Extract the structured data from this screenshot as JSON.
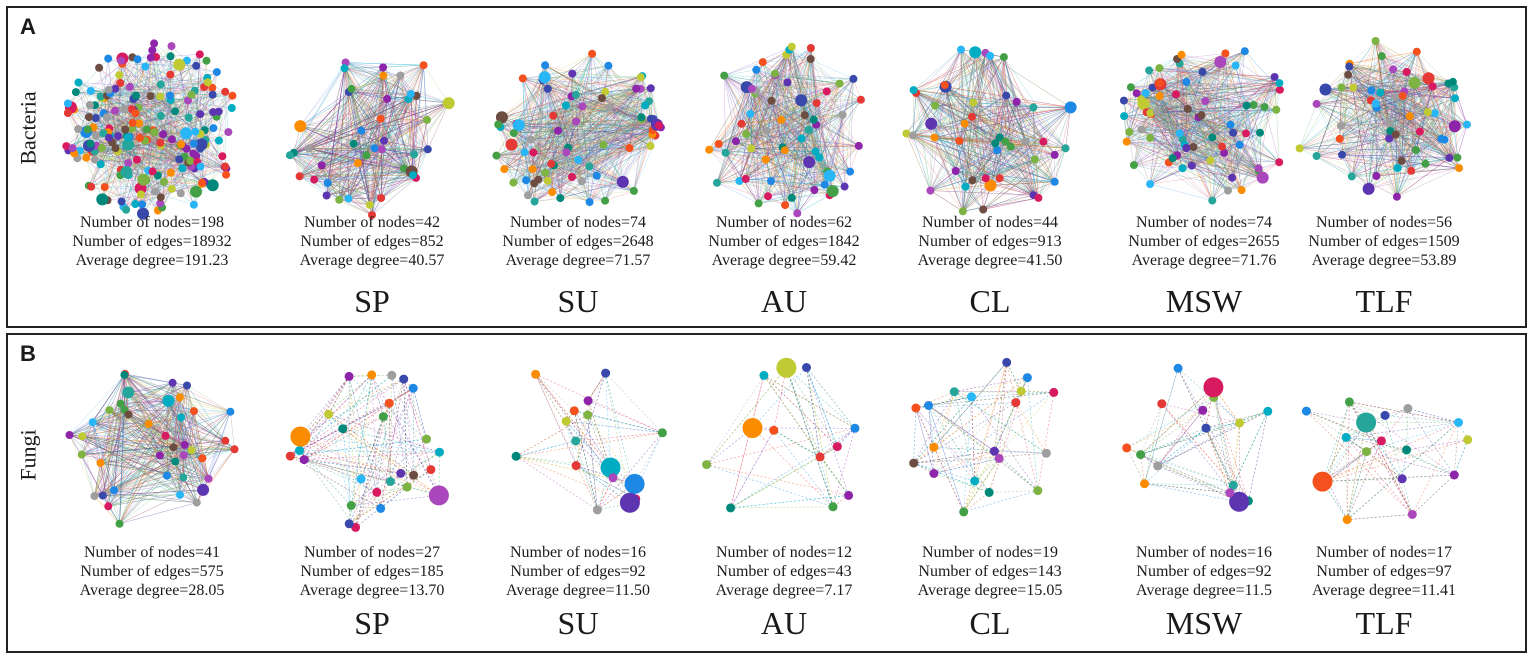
{
  "panels": [
    {
      "letter": "A",
      "row_label": "Bacteria",
      "networks": [
        {
          "condition": "",
          "nodes": "Number of nodes=198",
          "edges": "Number of edges=18932",
          "degree": "Average degree=191.23",
          "n_nodes": 198
        },
        {
          "condition": "SP",
          "nodes": "Number of nodes=42",
          "edges": "Number of edges=852",
          "degree": "Average degree=40.57",
          "n_nodes": 42
        },
        {
          "condition": "SU",
          "nodes": "Number of nodes=74",
          "edges": "Number of edges=2648",
          "degree": "Average degree=71.57",
          "n_nodes": 74
        },
        {
          "condition": "AU",
          "nodes": "Number of nodes=62",
          "edges": "Number of edges=1842",
          "degree": "Average degree=59.42",
          "n_nodes": 62
        },
        {
          "condition": "CL",
          "nodes": "Number of nodes=44",
          "edges": "Number of edges=913",
          "degree": "Average degree=41.50",
          "n_nodes": 44
        },
        {
          "condition": "MSW",
          "nodes": "Number of nodes=74",
          "edges": "Number of edges=2655",
          "degree": "Average degree=71.76",
          "n_nodes": 74
        },
        {
          "condition": "TLF",
          "nodes": "Number of nodes=56",
          "edges": "Number of edges=1509",
          "degree": "Average degree=53.89",
          "n_nodes": 56
        }
      ]
    },
    {
      "letter": "B",
      "row_label": "Fungi",
      "networks": [
        {
          "condition": "",
          "nodes": "Number of nodes=41",
          "edges": "Number of edges=575",
          "degree": "Average degree=28.05",
          "n_nodes": 41
        },
        {
          "condition": "SP",
          "nodes": "Number of nodes=27",
          "edges": "Number of edges=185",
          "degree": "Average degree=13.70",
          "n_nodes": 27
        },
        {
          "condition": "SU",
          "nodes": "Number of nodes=16",
          "edges": "Number of edges=92",
          "degree": "Average degree=11.50",
          "n_nodes": 16
        },
        {
          "condition": "AU",
          "nodes": "Number of nodes=12",
          "edges": "Number of edges=43",
          "degree": "Average degree=7.17",
          "n_nodes": 12
        },
        {
          "condition": "CL",
          "nodes": "Number of nodes=19",
          "edges": "Number of edges=143",
          "degree": "Average degree=15.05",
          "n_nodes": 19
        },
        {
          "condition": "MSW",
          "nodes": "Number of nodes=16",
          "edges": "Number of edges=92",
          "degree": "Average degree=11.5",
          "n_nodes": 16
        },
        {
          "condition": "TLF",
          "nodes": "Number of nodes=17",
          "edges": "Number of edges=97",
          "degree": "Average degree=11.41",
          "n_nodes": 17
        }
      ]
    }
  ],
  "node_colors": [
    "#1e88e5",
    "#43a047",
    "#e53935",
    "#8e24aa",
    "#fb8c00",
    "#00acc1",
    "#7cb342",
    "#d81b60",
    "#3949ab",
    "#00897b",
    "#c0ca33",
    "#f4511e",
    "#5e35b1",
    "#26a69a",
    "#9e9e9e",
    "#ab47bc",
    "#29b6f6",
    "#6d4c41"
  ]
}
